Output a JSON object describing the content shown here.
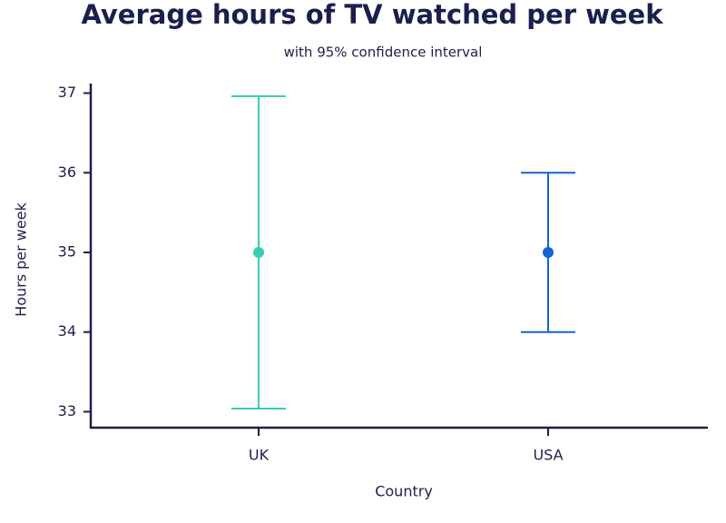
{
  "chart_data": {
    "type": "errorbar",
    "title": "Average hours of TV watched per week",
    "subtitle": "with 95% confidence interval",
    "x_label": "Country",
    "y_label": "Hours per week",
    "categories": [
      "UK",
      "USA"
    ],
    "values": [
      35,
      35
    ],
    "errors": [
      1.96,
      1
    ],
    "colors": [
      "#3cccb4",
      "#1463d1"
    ],
    "ylim": [
      32.8,
      37.12
    ],
    "yticks": [
      33,
      34,
      35,
      36,
      37
    ],
    "grid": false
  }
}
